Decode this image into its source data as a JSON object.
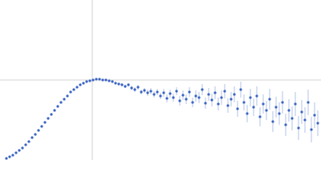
{
  "chart_data": {
    "type": "scatter",
    "color": "#3a64c2",
    "error_color": "#9fb4e3",
    "xlim": [
      0,
      400
    ],
    "ylim": [
      0,
      200
    ],
    "reference_lines": {
      "x": 115,
      "y": 100,
      "color": "#d0d0d0"
    },
    "x": [
      8,
      12,
      16,
      20,
      24,
      28,
      32,
      36,
      40,
      44,
      48,
      52,
      56,
      60,
      64,
      68,
      72,
      76,
      80,
      84,
      88,
      92,
      96,
      100,
      104,
      108,
      112,
      116,
      120,
      124,
      128,
      132,
      136,
      140,
      144,
      148,
      152,
      156,
      160,
      164,
      168,
      172,
      176,
      180,
      184,
      188,
      192,
      196,
      200,
      204,
      208,
      212,
      216,
      220,
      224,
      228,
      232,
      236,
      240,
      244,
      248,
      252,
      256,
      260,
      264,
      268,
      272,
      276,
      280,
      284,
      288,
      292,
      296,
      300,
      304,
      308,
      312,
      316,
      320,
      324,
      328,
      332,
      336,
      340,
      344,
      348,
      352,
      356,
      360,
      364,
      368,
      372,
      376,
      380,
      384,
      388,
      392,
      396
    ],
    "values": [
      2,
      4,
      6,
      9,
      12,
      15,
      19,
      23,
      28,
      32,
      37,
      42,
      47,
      52,
      57,
      62,
      67,
      72,
      76,
      80,
      85,
      88,
      91,
      94,
      96,
      98,
      99,
      100,
      101,
      101,
      100,
      100,
      99,
      98,
      96,
      95,
      94,
      92,
      94,
      90,
      88,
      91,
      85,
      87,
      84,
      86,
      82,
      85,
      80,
      84,
      77,
      83,
      78,
      86,
      74,
      81,
      76,
      85,
      72,
      80,
      78,
      88,
      71,
      82,
      75,
      84,
      70,
      78,
      86,
      68,
      76,
      82,
      64,
      88,
      72,
      58,
      78,
      66,
      80,
      54,
      70,
      62,
      76,
      48,
      66,
      58,
      72,
      44,
      62,
      52,
      70,
      40,
      60,
      50,
      72,
      38,
      56,
      46
    ],
    "errors": [
      0.5,
      0.5,
      0.5,
      0.5,
      0.5,
      0.5,
      0.5,
      0.5,
      0.5,
      0.5,
      0.5,
      0.5,
      0.5,
      0.5,
      0.5,
      0.5,
      0.5,
      0.5,
      0.5,
      0.5,
      0.5,
      0.5,
      0.5,
      0.5,
      0.5,
      0.5,
      0.5,
      0.5,
      0.5,
      0.5,
      0.5,
      0.5,
      0.5,
      0.5,
      0.5,
      0.5,
      2,
      2,
      2,
      3,
      3,
      3,
      3,
      3,
      4,
      4,
      4,
      4,
      4,
      5,
      5,
      5,
      5,
      5,
      6,
      6,
      6,
      6,
      6,
      7,
      7,
      7,
      7,
      8,
      8,
      8,
      8,
      9,
      9,
      9,
      9,
      10,
      10,
      10,
      10,
      11,
      11,
      11,
      12,
      12,
      12,
      12,
      13,
      13,
      13,
      14,
      14,
      14,
      14,
      15,
      15,
      15,
      15,
      16,
      16,
      16,
      16,
      16
    ]
  }
}
